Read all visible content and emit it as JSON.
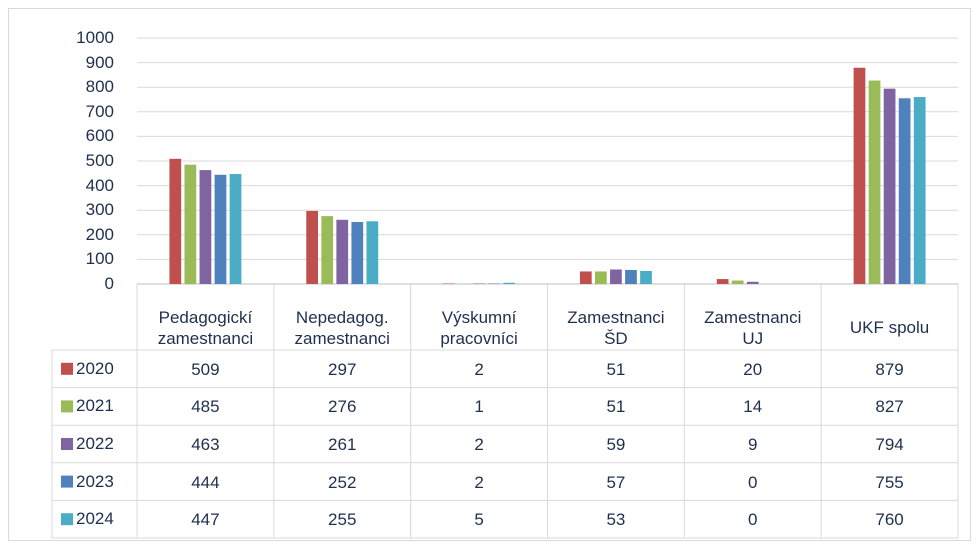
{
  "chart_data": {
    "type": "bar",
    "categories": [
      "Pedagogickí\nzamestnanci",
      "Nepedagog.\nzamestnanci",
      "Výskumní\npracovníci",
      "Zamestnanci\nŠD",
      "Zamestnanci\nUJ",
      "UKF spolu"
    ],
    "series": [
      {
        "name": "2020",
        "color": "#c0504d",
        "values": [
          509,
          297,
          2,
          51,
          20,
          879
        ]
      },
      {
        "name": "2021",
        "color": "#9bbb59",
        "values": [
          485,
          276,
          1,
          51,
          14,
          827
        ]
      },
      {
        "name": "2022",
        "color": "#8064a2",
        "values": [
          463,
          261,
          2,
          59,
          9,
          794
        ]
      },
      {
        "name": "2023",
        "color": "#4f81bd",
        "values": [
          444,
          252,
          2,
          57,
          0,
          755
        ]
      },
      {
        "name": "2024",
        "color": "#4bacc6",
        "values": [
          447,
          255,
          5,
          53,
          0,
          760
        ]
      }
    ],
    "ylim": [
      0,
      1000
    ],
    "yticks": [
      0,
      100,
      200,
      300,
      400,
      500,
      600,
      700,
      800,
      900,
      1000
    ],
    "grid": true
  }
}
